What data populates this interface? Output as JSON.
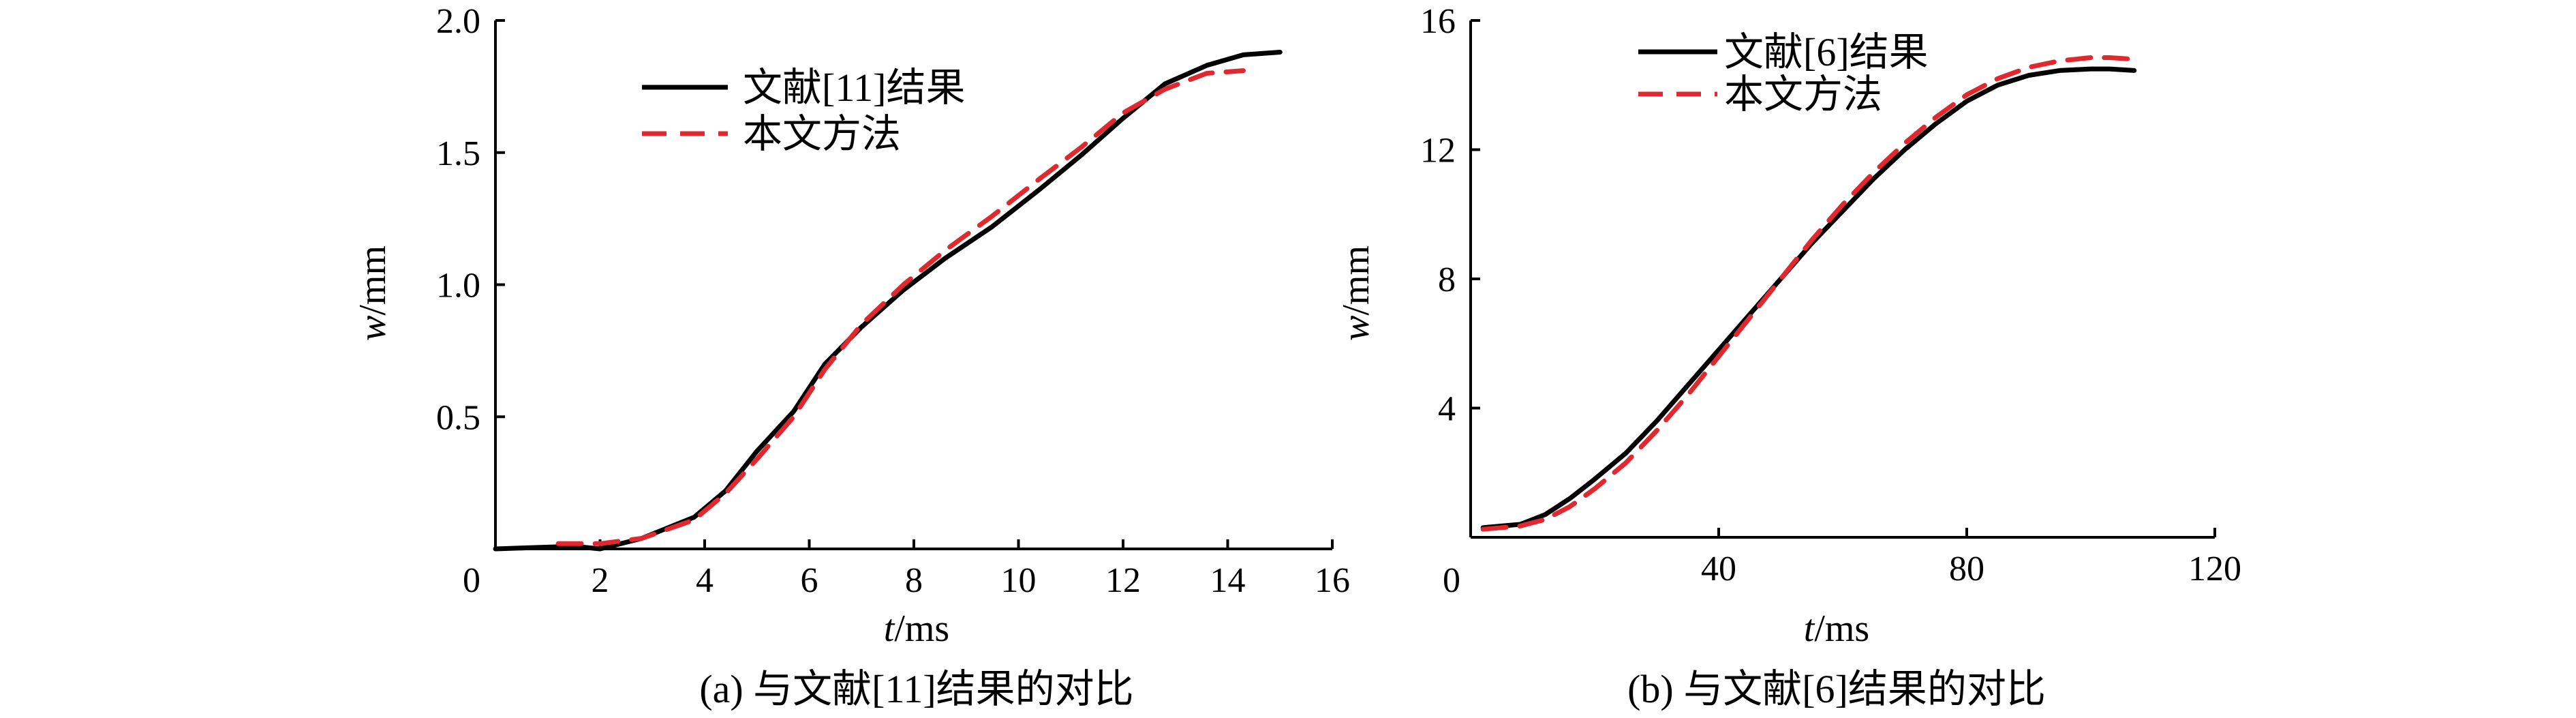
{
  "chart_data": [
    {
      "type": "line",
      "caption": "(a) 与文献[11]结果的对比",
      "xlabel_var": "t",
      "xlabel_unit": "/ms",
      "ylabel_var": "w",
      "ylabel_unit": "/mm",
      "xlim": [
        0,
        16
      ],
      "ylim": [
        0,
        2.0
      ],
      "x_origin_label": "0",
      "x_ticks": [
        2,
        4,
        6,
        8,
        10,
        12,
        14,
        16
      ],
      "x_tick_labels": [
        "2",
        "4",
        "6",
        "8",
        "10",
        "12",
        "14",
        "16"
      ],
      "y_ticks": [
        0.5,
        1.0,
        1.5,
        2.0
      ],
      "y_tick_labels": [
        "0.5",
        "1.0",
        "1.5",
        "2.0"
      ],
      "legend_position": "top-center",
      "series": [
        {
          "name": "文献[11]结果",
          "style": "solid",
          "color": "#000000",
          "x": [
            0,
            1.5,
            2.0,
            2.8,
            3.8,
            4.4,
            5.0,
            5.7,
            6.3,
            7.0,
            7.8,
            8.6,
            9.5,
            10.4,
            11.2,
            12.0,
            12.8,
            13.6,
            14.3,
            15.0
          ],
          "y": [
            0.0,
            0.01,
            0.0,
            0.04,
            0.12,
            0.22,
            0.37,
            0.52,
            0.7,
            0.84,
            0.98,
            1.1,
            1.22,
            1.36,
            1.49,
            1.63,
            1.76,
            1.83,
            1.87,
            1.88
          ]
        },
        {
          "name": "本文方法",
          "style": "dashed",
          "color": "#e0282e",
          "x": [
            1.2,
            2.0,
            2.8,
            3.8,
            4.4,
            5.0,
            5.7,
            6.3,
            7.0,
            7.8,
            8.6,
            9.5,
            10.4,
            11.2,
            12.0,
            12.8,
            13.6,
            14.3
          ],
          "y": [
            0.02,
            0.02,
            0.04,
            0.11,
            0.21,
            0.34,
            0.5,
            0.68,
            0.85,
            1.0,
            1.13,
            1.26,
            1.4,
            1.52,
            1.65,
            1.74,
            1.8,
            1.81
          ]
        }
      ]
    },
    {
      "type": "line",
      "caption": "(b) 与文献[6]结果的对比",
      "xlabel_var": "t",
      "xlabel_unit": "/ms",
      "ylabel_var": "w",
      "ylabel_unit": "/mm",
      "xlim": [
        0,
        120
      ],
      "ylim": [
        0,
        16
      ],
      "x_origin_label": "0",
      "x_ticks": [
        40,
        80,
        120
      ],
      "x_tick_labels": [
        "40",
        "80",
        "120"
      ],
      "y_ticks": [
        4,
        8,
        12,
        16
      ],
      "y_tick_labels": [
        "4",
        "8",
        "12",
        "16"
      ],
      "legend_position": "top-left",
      "series": [
        {
          "name": "文献[6]结果",
          "style": "solid",
          "color": "#000000",
          "x": [
            2,
            5,
            8,
            12,
            16,
            20,
            25,
            30,
            35,
            40,
            45,
            50,
            55,
            60,
            65,
            70,
            75,
            80,
            85,
            90,
            95,
            100,
            103,
            107
          ],
          "y": [
            0.3,
            0.35,
            0.4,
            0.7,
            1.2,
            1.8,
            2.6,
            3.6,
            4.7,
            5.8,
            6.9,
            8.0,
            9.1,
            10.1,
            11.1,
            12.0,
            12.8,
            13.5,
            14.0,
            14.3,
            14.45,
            14.5,
            14.5,
            14.45
          ]
        },
        {
          "name": "本文方法",
          "style": "dashed",
          "color": "#e0282e",
          "x": [
            2,
            5,
            8,
            12,
            16,
            20,
            25,
            30,
            35,
            40,
            45,
            50,
            55,
            60,
            65,
            70,
            75,
            80,
            85,
            90,
            95,
            100,
            103,
            107
          ],
          "y": [
            0.25,
            0.3,
            0.35,
            0.55,
            0.95,
            1.5,
            2.3,
            3.3,
            4.4,
            5.6,
            6.8,
            8.0,
            9.2,
            10.3,
            11.3,
            12.2,
            13.0,
            13.7,
            14.2,
            14.55,
            14.75,
            14.85,
            14.85,
            14.8
          ]
        }
      ]
    }
  ]
}
